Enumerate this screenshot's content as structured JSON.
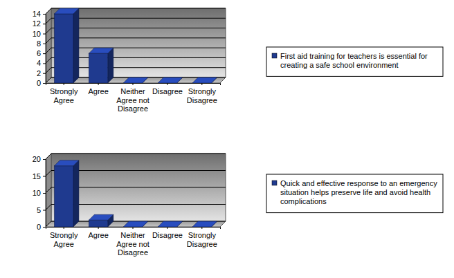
{
  "chart_data": [
    {
      "type": "bar",
      "categories": [
        "Strongly Agree",
        "Agree",
        "Neither Agree not Disagree",
        "Disagree",
        "Strongly Disagree"
      ],
      "series": [
        {
          "name": "First aid training for teachers is essential for creating a safe school environment",
          "color": "#1f3a8f",
          "values": [
            14,
            6,
            0,
            0,
            0
          ]
        }
      ],
      "ylim": [
        0,
        14
      ],
      "yticks": [
        0,
        2,
        4,
        6,
        8,
        10,
        12,
        14
      ],
      "grid": true,
      "legend": "right"
    },
    {
      "type": "bar",
      "categories": [
        "Strongly Agree",
        "Agree",
        "Neither Agree not Disagree",
        "Disagree",
        "Strongly Disagree"
      ],
      "series": [
        {
          "name": "Quick and effective response to an emergency situation helps preserve life and avoid health complications",
          "color": "#1f3a8f",
          "values": [
            18,
            2,
            0,
            0,
            0
          ]
        }
      ],
      "ylim": [
        0,
        20
      ],
      "yticks": [
        0,
        5,
        10,
        15,
        20
      ],
      "grid": true,
      "legend": "right"
    }
  ]
}
